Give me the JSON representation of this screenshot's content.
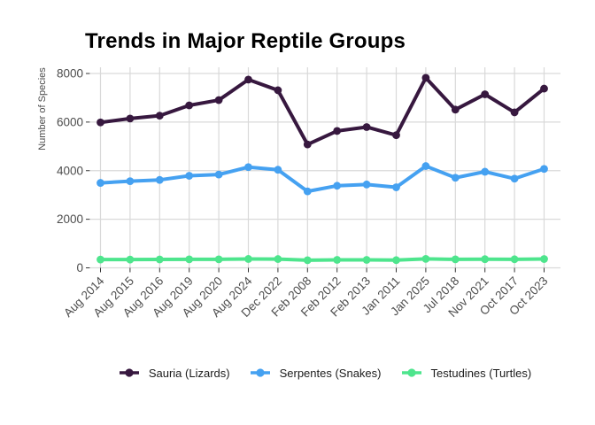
{
  "chart_data": {
    "type": "line",
    "title": "Trends in Major Reptile Groups",
    "xlabel": "",
    "ylabel": "Number of Species",
    "categories": [
      "Aug 2014",
      "Aug 2015",
      "Aug 2016",
      "Aug 2019",
      "Aug 2020",
      "Aug 2024",
      "Dec 2022",
      "Feb 2008",
      "Feb 2012",
      "Feb 2013",
      "Jan 2011",
      "Jan 2025",
      "Jul 2018",
      "Nov 2021",
      "Oct 2017",
      "Oct 2023"
    ],
    "series": [
      {
        "name": "Sauria (Lizards)",
        "color": "#37183f",
        "values": [
          5987,
          6145,
          6263,
          6687,
          6905,
          7749,
          7310,
          5079,
          5634,
          5796,
          5461,
          7822,
          6512,
          7144,
          6399,
          7378
        ]
      },
      {
        "name": "Serpentes (Snakes)",
        "color": "#45a1f1",
        "values": [
          3496,
          3567,
          3619,
          3789,
          3841,
          4146,
          4038,
          3149,
          3378,
          3432,
          3315,
          4189,
          3709,
          3956,
          3671,
          4073
        ]
      },
      {
        "name": "Testudines (Turtles)",
        "color": "#4ee58d",
        "values": [
          341,
          340,
          346,
          351,
          351,
          366,
          362,
          313,
          327,
          328,
          317,
          368,
          350,
          357,
          353,
          363
        ]
      }
    ],
    "ylim": [
      0,
      8000
    ],
    "yticks": [
      0,
      2000,
      4000,
      6000,
      8000
    ],
    "grid": true,
    "legend_position": "bottom"
  },
  "colors": {
    "background": "#ffffff",
    "grid": "#d9d9d9",
    "tick_mark": "#333333",
    "tick_text": "#4d4d4d",
    "title_text": "#000000",
    "legend_text": "#1b1b1b"
  }
}
